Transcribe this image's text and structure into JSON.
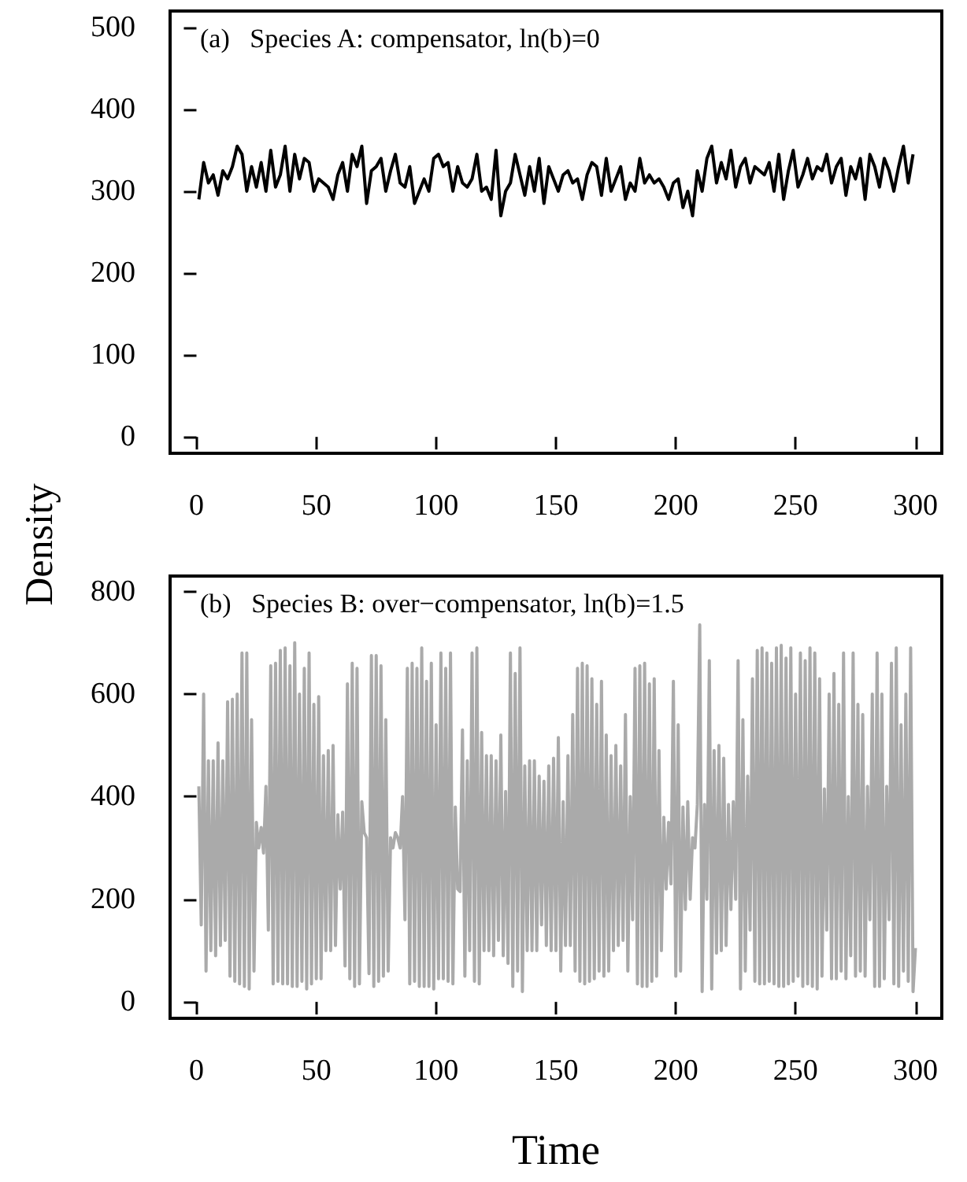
{
  "chart_data": [
    {
      "type": "line",
      "title": "(a)   Species A: compensator, ln(b)=0",
      "ylabel": "Density",
      "xlim": [
        -11,
        311
      ],
      "xticks": [
        0,
        50,
        100,
        150,
        200,
        250,
        300
      ],
      "ylim": [
        -20,
        520
      ],
      "yticks": [
        0,
        100,
        200,
        300,
        400,
        500
      ],
      "series": [
        {
          "color": "#000000",
          "x": [
            1,
            3,
            5,
            7,
            9,
            11,
            13,
            15,
            17,
            19,
            21,
            23,
            25,
            27,
            29,
            31,
            33,
            35,
            37,
            39,
            41,
            43,
            45,
            47,
            49,
            51,
            53,
            55,
            57,
            59,
            61,
            63,
            65,
            67,
            69,
            71,
            73,
            75,
            77,
            79,
            81,
            83,
            85,
            87,
            89,
            91,
            93,
            95,
            97,
            99,
            101,
            103,
            105,
            107,
            109,
            111,
            113,
            115,
            117,
            119,
            121,
            123,
            125,
            127,
            129,
            131,
            133,
            135,
            137,
            139,
            141,
            143,
            145,
            147,
            149,
            151,
            153,
            155,
            157,
            159,
            161,
            163,
            165,
            167,
            169,
            171,
            173,
            175,
            177,
            179,
            181,
            183,
            185,
            187,
            189,
            191,
            193,
            195,
            197,
            199,
            201,
            203,
            205,
            207,
            209,
            211,
            213,
            215,
            217,
            219,
            221,
            223,
            225,
            227,
            229,
            231,
            233,
            235,
            237,
            239,
            241,
            243,
            245,
            247,
            249,
            251,
            253,
            255,
            257,
            259,
            261,
            263,
            265,
            267,
            269,
            271,
            273,
            275,
            277,
            279,
            281,
            283,
            285,
            287,
            289,
            291,
            293,
            295,
            297,
            299
          ],
          "values": [
            290,
            335,
            310,
            320,
            295,
            325,
            315,
            330,
            355,
            345,
            300,
            330,
            305,
            335,
            300,
            350,
            305,
            320,
            355,
            300,
            345,
            315,
            340,
            335,
            300,
            315,
            310,
            305,
            290,
            320,
            335,
            300,
            345,
            330,
            355,
            285,
            325,
            330,
            340,
            300,
            325,
            345,
            310,
            305,
            330,
            285,
            300,
            315,
            300,
            340,
            345,
            330,
            335,
            300,
            330,
            310,
            305,
            315,
            345,
            300,
            305,
            290,
            350,
            270,
            300,
            310,
            345,
            320,
            295,
            330,
            300,
            340,
            285,
            330,
            315,
            300,
            320,
            325,
            310,
            315,
            290,
            320,
            335,
            330,
            295,
            340,
            300,
            315,
            330,
            290,
            310,
            300,
            340,
            310,
            320,
            310,
            315,
            305,
            290,
            310,
            315,
            280,
            300,
            270,
            325,
            300,
            340,
            355,
            310,
            335,
            315,
            350,
            305,
            330,
            340,
            310,
            330,
            325,
            320,
            335,
            300,
            345,
            290,
            325,
            350,
            305,
            320,
            340,
            315,
            330,
            325,
            345,
            310,
            330,
            340,
            295,
            330,
            315,
            340,
            290,
            345,
            330,
            305,
            340,
            325,
            300,
            330,
            355,
            310,
            345
          ]
        }
      ]
    },
    {
      "type": "line",
      "title": "(b)   Species B: over−compensator, ln(b)=1.5",
      "xlabel": "Time",
      "xlim": [
        -11,
        311
      ],
      "xticks": [
        0,
        50,
        100,
        150,
        200,
        250,
        300
      ],
      "ylim": [
        -32,
        830
      ],
      "yticks": [
        0,
        200,
        400,
        600,
        800
      ],
      "series": [
        {
          "color": "#aaaaaa",
          "x": [
            1,
            2,
            3,
            4,
            5,
            6,
            7,
            8,
            9,
            10,
            11,
            12,
            13,
            14,
            15,
            16,
            17,
            18,
            19,
            20,
            21,
            22,
            23,
            24,
            25,
            26,
            27,
            28,
            29,
            30,
            31,
            32,
            33,
            34,
            35,
            36,
            37,
            38,
            39,
            40,
            41,
            42,
            43,
            44,
            45,
            46,
            47,
            48,
            49,
            50,
            51,
            52,
            53,
            54,
            55,
            56,
            57,
            58,
            59,
            60,
            61,
            62,
            63,
            64,
            65,
            66,
            67,
            68,
            69,
            70,
            71,
            72,
            73,
            74,
            75,
            76,
            77,
            78,
            79,
            80,
            81,
            82,
            83,
            84,
            85,
            86,
            87,
            88,
            89,
            90,
            91,
            92,
            93,
            94,
            95,
            96,
            97,
            98,
            99,
            100,
            101,
            102,
            103,
            104,
            105,
            106,
            107,
            108,
            109,
            110,
            111,
            112,
            113,
            114,
            115,
            116,
            117,
            118,
            119,
            120,
            121,
            122,
            123,
            124,
            125,
            126,
            127,
            128,
            129,
            130,
            131,
            132,
            133,
            134,
            135,
            136,
            137,
            138,
            139,
            140,
            141,
            142,
            143,
            144,
            145,
            146,
            147,
            148,
            149,
            150,
            151,
            152,
            153,
            154,
            155,
            156,
            157,
            158,
            159,
            160,
            161,
            162,
            163,
            164,
            165,
            166,
            167,
            168,
            169,
            170,
            171,
            172,
            173,
            174,
            175,
            176,
            177,
            178,
            179,
            180,
            181,
            182,
            183,
            184,
            185,
            186,
            187,
            188,
            189,
            190,
            191,
            192,
            193,
            194,
            195,
            196,
            197,
            198,
            199,
            200,
            201,
            202,
            203,
            204,
            205,
            206,
            207,
            208,
            209,
            210,
            211,
            212,
            213,
            214,
            215,
            216,
            217,
            218,
            219,
            220,
            221,
            222,
            223,
            224,
            225,
            226,
            227,
            228,
            229,
            230,
            231,
            232,
            233,
            234,
            235,
            236,
            237,
            238,
            239,
            240,
            241,
            242,
            243,
            244,
            245,
            246,
            247,
            248,
            249,
            250,
            251,
            252,
            253,
            254,
            255,
            256,
            257,
            258,
            259,
            260,
            261,
            262,
            263,
            264,
            265,
            266,
            267,
            268,
            269,
            270,
            271,
            272,
            273,
            274,
            275,
            276,
            277,
            278,
            279,
            280,
            281,
            282,
            283,
            284,
            285,
            286,
            287,
            288,
            289,
            290,
            291,
            292,
            293,
            294,
            295,
            296,
            297,
            298,
            299,
            300
          ],
          "values": [
            420,
            150,
            600,
            60,
            470,
            100,
            470,
            90,
            505,
            110,
            470,
            120,
            585,
            50,
            590,
            40,
            600,
            35,
            680,
            30,
            680,
            25,
            550,
            60,
            350,
            300,
            340,
            290,
            420,
            140,
            655,
            35,
            660,
            40,
            685,
            35,
            690,
            35,
            655,
            30,
            700,
            30,
            600,
            40,
            650,
            25,
            680,
            35,
            580,
            45,
            595,
            45,
            480,
            100,
            490,
            100,
            500,
            110,
            365,
            220,
            370,
            70,
            620,
            45,
            660,
            30,
            650,
            35,
            390,
            330,
            320,
            55,
            675,
            30,
            675,
            40,
            655,
            50,
            550,
            60,
            320,
            300,
            330,
            320,
            300,
            400,
            160,
            650,
            35,
            660,
            40,
            650,
            30,
            690,
            30,
            625,
            30,
            660,
            25,
            540,
            45,
            680,
            45,
            650,
            40,
            680,
            35,
            380,
            220,
            215,
            530,
            50,
            470,
            100,
            680,
            40,
            690,
            35,
            525,
            100,
            480,
            100,
            480,
            90,
            470,
            120,
            520,
            90,
            410,
            75,
            680,
            30,
            640,
            60,
            690,
            20,
            460,
            100,
            470,
            100,
            470,
            100,
            440,
            150,
            430,
            110,
            460,
            100,
            475,
            100,
            515,
            60,
            390,
            110,
            480,
            110,
            560,
            60,
            650,
            40,
            660,
            35,
            655,
            40,
            630,
            45,
            580,
            60,
            625,
            50,
            520,
            60,
            480,
            100,
            500,
            110,
            460,
            120,
            560,
            60,
            400,
            160,
            650,
            35,
            655,
            30,
            660,
            30,
            620,
            40,
            630,
            50,
            490,
            100,
            360,
            220,
            350,
            230,
            625,
            50,
            540,
            60,
            380,
            180,
            390,
            200,
            320,
            300,
            385,
            735,
            20,
            385,
            200,
            665,
            25,
            490,
            95,
            500,
            100,
            475,
            110,
            385,
            180,
            390,
            200,
            665,
            25,
            550,
            60,
            440,
            140,
            630,
            40,
            685,
            35,
            690,
            35,
            680,
            40,
            660,
            35,
            690,
            30,
            695,
            30,
            670,
            35,
            690,
            40,
            600,
            50,
            680,
            30,
            665,
            35,
            690,
            30,
            680,
            25,
            630,
            50,
            415,
            140,
            600,
            45,
            640,
            45,
            580,
            60,
            680,
            45,
            400,
            90,
            680,
            50,
            580,
            60,
            560,
            50,
            420,
            160,
            600,
            30,
            680,
            30,
            600,
            45,
            420,
            160,
            660,
            35,
            690,
            30,
            540,
            60,
            600,
            40,
            690,
            20,
            105
          ]
        }
      ]
    }
  ]
}
